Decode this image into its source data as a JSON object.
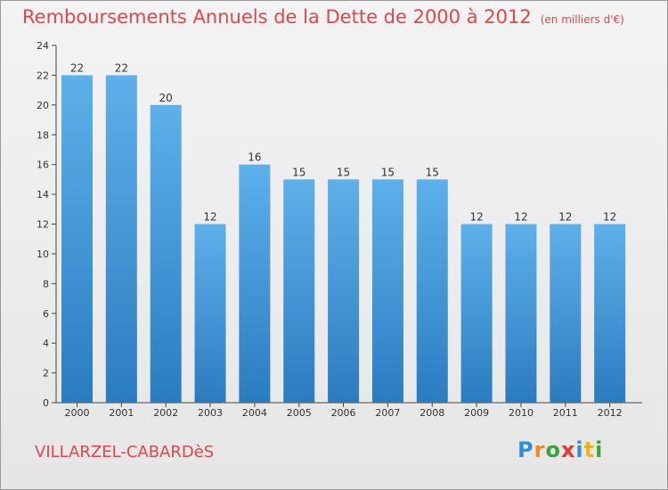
{
  "title": "Remboursements Annuels de la Dette de 2000 à 2012",
  "unit_note": "(en milliers d'€)",
  "commune": "VILLARZEL-CABARDèS",
  "logo": {
    "text": "Proxiti",
    "letters": [
      {
        "ch": "P",
        "color": "#2f8fd6"
      },
      {
        "ch": "r",
        "color": "#f08a1c"
      },
      {
        "ch": "o",
        "color": "#3aa63a"
      },
      {
        "ch": "x",
        "color": "#e8372c"
      },
      {
        "ch": "i",
        "color": "#2f8fd6"
      },
      {
        "ch": "t",
        "color": "#f0b21c"
      },
      {
        "ch": "i",
        "color": "#3aa63a"
      }
    ]
  },
  "colors": {
    "bar_top": "#5eb0ea",
    "bar_bottom": "#2a7cc0",
    "title": "#e0464b"
  },
  "chart_data": {
    "type": "bar",
    "title": "Remboursements Annuels de la Dette de 2000 à 2012",
    "categories": [
      "2000",
      "2001",
      "2002",
      "2003",
      "2004",
      "2005",
      "2006",
      "2007",
      "2008",
      "2009",
      "2010",
      "2011",
      "2012"
    ],
    "values": [
      22,
      22,
      20,
      12,
      16,
      15,
      15,
      15,
      15,
      12,
      12,
      12,
      12
    ],
    "ylim": [
      0,
      24
    ],
    "yticks": [
      0,
      2,
      4,
      6,
      8,
      10,
      12,
      14,
      16,
      18,
      20,
      22,
      24
    ],
    "grid": false,
    "legend": "none"
  }
}
